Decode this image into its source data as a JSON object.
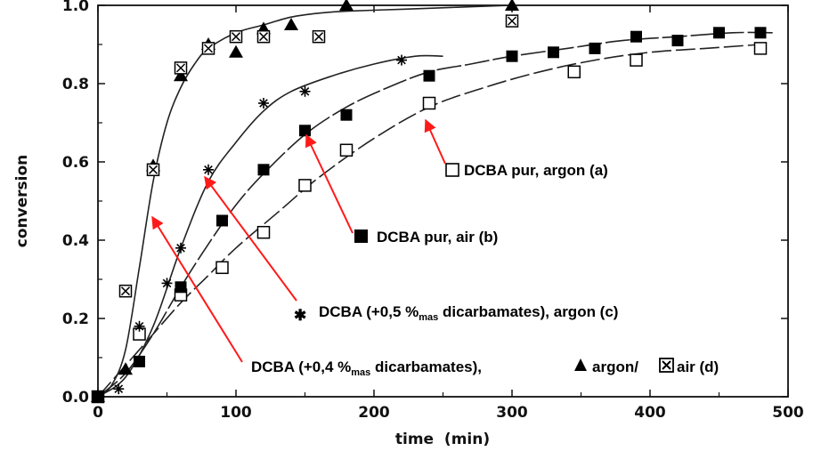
{
  "chart_data": {
    "type": "scatter",
    "xlabel": "time  (min)",
    "ylabel": "conversion",
    "xlim": [
      0,
      500
    ],
    "ylim": [
      0,
      1.0
    ],
    "xticks": [
      "0",
      "100",
      "200",
      "300",
      "400",
      "500"
    ],
    "yticks": [
      "0.0",
      "0.2",
      "0.4",
      "0.6",
      "0.8",
      "1.0"
    ],
    "grid": false,
    "series": [
      {
        "marker": "open-square",
        "x": [
          0,
          30,
          60,
          90,
          120,
          150,
          180,
          240,
          345,
          390,
          480
        ],
        "y": [
          0.0,
          0.16,
          0.26,
          0.33,
          0.42,
          0.54,
          0.63,
          0.75,
          0.83,
          0.86,
          0.89
        ],
        "curve_x": [
          0,
          20,
          40,
          60,
          80,
          100,
          130,
          160,
          200,
          240,
          280,
          320,
          360,
          400,
          440,
          480
        ],
        "curve_y": [
          0.0,
          0.08,
          0.16,
          0.24,
          0.31,
          0.38,
          0.47,
          0.56,
          0.66,
          0.74,
          0.79,
          0.83,
          0.86,
          0.88,
          0.89,
          0.9
        ]
      },
      {
        "marker": "filled-square",
        "x": [
          0,
          30,
          60,
          90,
          120,
          150,
          180,
          240,
          300,
          330,
          360,
          390,
          420,
          450,
          480
        ],
        "y": [
          0.0,
          0.09,
          0.28,
          0.45,
          0.58,
          0.68,
          0.72,
          0.82,
          0.87,
          0.88,
          0.89,
          0.92,
          0.91,
          0.93,
          0.93
        ],
        "curve_x": [
          0,
          20,
          40,
          60,
          80,
          100,
          120,
          150,
          180,
          210,
          240,
          270,
          300,
          340,
          380,
          420,
          460,
          490
        ],
        "curve_y": [
          0.0,
          0.06,
          0.16,
          0.28,
          0.39,
          0.49,
          0.57,
          0.67,
          0.74,
          0.79,
          0.83,
          0.85,
          0.87,
          0.89,
          0.91,
          0.92,
          0.93,
          0.93
        ]
      },
      {
        "marker": "asterisk",
        "x": [
          0,
          15,
          30,
          50,
          60,
          80,
          120,
          150,
          220
        ],
        "y": [
          0.0,
          0.02,
          0.18,
          0.29,
          0.38,
          0.58,
          0.75,
          0.78,
          0.86
        ],
        "curve_x": [
          0,
          20,
          40,
          60,
          80,
          100,
          120,
          140,
          170,
          200,
          230,
          250
        ],
        "curve_y": [
          0.0,
          0.05,
          0.18,
          0.38,
          0.55,
          0.65,
          0.73,
          0.78,
          0.82,
          0.85,
          0.87,
          0.87
        ]
      },
      {
        "marker": "filled-triangle",
        "x": [
          0,
          20,
          40,
          60,
          80,
          100,
          120,
          140,
          180,
          300
        ],
        "y": [
          0.0,
          0.07,
          0.59,
          0.82,
          0.9,
          0.88,
          0.94,
          0.95,
          1.0,
          1.0
        ],
        "curve_x": [
          0,
          10,
          20,
          30,
          40,
          50,
          60,
          70,
          80,
          100,
          120,
          140,
          160,
          180,
          220,
          260,
          300
        ],
        "curve_y": [
          0.0,
          0.03,
          0.12,
          0.33,
          0.55,
          0.7,
          0.79,
          0.85,
          0.89,
          0.93,
          0.95,
          0.97,
          0.98,
          0.985,
          0.99,
          0.995,
          1.0
        ]
      },
      {
        "marker": "crossed-open-square",
        "x": [
          20,
          40,
          60,
          80,
          100,
          120,
          160,
          300
        ],
        "y": [
          0.27,
          0.58,
          0.84,
          0.89,
          0.92,
          0.92,
          0.92,
          0.96
        ]
      }
    ],
    "annotations": {
      "a": {
        "main": "DCBA pur, argon (a)"
      },
      "b": {
        "main": "DCBA pur, air (b)"
      },
      "c": {
        "pre": "DCBA (+0,5 %",
        "sub": "mas",
        "post": " dicarbamates), argon (c)"
      },
      "d": {
        "pre": "DCBA (+0,4 %",
        "sub": "mas",
        "post": " dicarbamates), ",
        "tri": "argon/",
        "air": "air (d)"
      }
    }
  }
}
